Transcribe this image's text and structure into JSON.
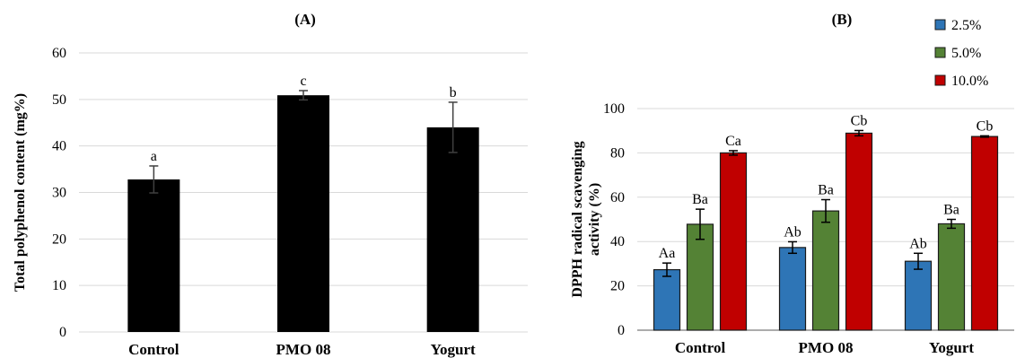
{
  "chart_data": [
    {
      "type": "bar",
      "title": "(A)",
      "xlabel": "",
      "ylabel": "Total polyphenol content (mg%)",
      "ylim": [
        0,
        60
      ],
      "yticks": [
        0,
        10,
        20,
        30,
        40,
        50,
        60
      ],
      "grid": true,
      "categories": [
        "Control",
        "PMO 08",
        "Yogurt"
      ],
      "series": [
        {
          "values": [
            32.8,
            50.9,
            44.0
          ],
          "errors": [
            2.9,
            1.0,
            5.4
          ],
          "labels": [
            "a",
            "c",
            "b"
          ],
          "color": "#000000"
        }
      ]
    },
    {
      "type": "bar",
      "title": "(B)",
      "xlabel": "",
      "ylabel": [
        "DPPH radical scavenging",
        "activity (%)"
      ],
      "ylim": [
        0,
        100
      ],
      "yticks": [
        0,
        20,
        40,
        60,
        80,
        100
      ],
      "grid": true,
      "legend_position": "top-right",
      "categories": [
        "Control",
        "PMO 08",
        "Yogurt"
      ],
      "series": [
        {
          "name": "2.5%",
          "color": "#2e75b6",
          "values": [
            27.3,
            37.3,
            31.1
          ],
          "errors": [
            3.0,
            2.6,
            3.6
          ],
          "labels": [
            "Aa",
            "Ab",
            "Ab"
          ]
        },
        {
          "name": "5.0%",
          "color": "#548235",
          "values": [
            47.8,
            53.8,
            48.0
          ],
          "errors": [
            6.8,
            5.1,
            2.0
          ],
          "labels": [
            "Ba",
            "Ba",
            "Ba"
          ]
        },
        {
          "name": "10.0%",
          "color": "#c00000",
          "values": [
            80.0,
            88.9,
            87.4
          ],
          "errors": [
            1.0,
            1.2,
            0.3
          ],
          "labels": [
            "Ca",
            "Cb",
            "Cb"
          ]
        }
      ]
    }
  ]
}
